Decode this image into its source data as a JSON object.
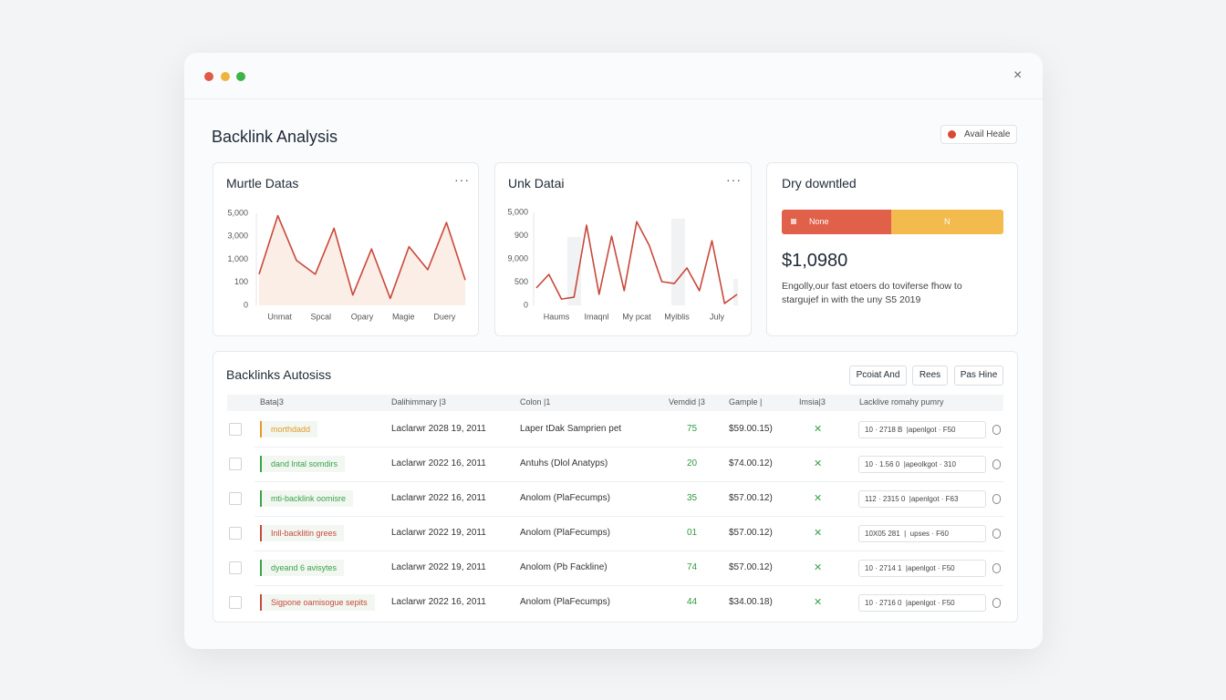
{
  "window": {
    "title": "Backlink Analysis",
    "button": "Avail Heale"
  },
  "charts": [
    {
      "type": "line",
      "title": "Murtle Datas",
      "color": "#c9483b",
      "fill": "#fbeee6",
      "y_labels": [
        "5,000",
        "3,000",
        "1,000",
        "100",
        "0"
      ],
      "ylim": [
        0,
        4
      ],
      "categories": [
        "Unmat",
        "Spcal",
        "Opary",
        "Magie",
        "Duery"
      ],
      "values": [
        1.35,
        3.9,
        1.95,
        1.35,
        3.35,
        0.45,
        2.45,
        0.3,
        2.55,
        1.55,
        3.6,
        1.1
      ]
    },
    {
      "type": "line",
      "title": "Unk Datai",
      "color": "#c9483b",
      "y_labels": [
        "5,000",
        "900",
        "9,000",
        "500",
        "0"
      ],
      "ylim": [
        0,
        4
      ],
      "categories": [
        "Haums",
        "Imaqnl",
        "My pcat",
        "Myiblis",
        "July"
      ],
      "values": [
        0.75,
        1.33,
        0.27,
        0.35,
        3.45,
        0.47,
        2.98,
        0.63,
        3.6,
        2.58,
        1.02,
        0.94,
        1.61,
        0.63,
        2.78,
        0.08,
        0.47
      ]
    }
  ],
  "summary": {
    "title": "Dry downtled",
    "bar_left": "None",
    "bar_right": "N",
    "amount": "$1,0980",
    "text_1": "Engolly,our fast etoers do toviferse fhow to",
    "text_2": "stargujef in with the uny S5 2019"
  },
  "table": {
    "title": "Backlinks Autosiss",
    "buttons": [
      "Pcoiat And",
      "Rees",
      "Pas Hine"
    ],
    "headers": [
      "Bata|3",
      "Dalihimmary |3",
      "Colon |1",
      "Vemdid |3",
      "Gample |",
      "Imsia|3",
      "Lacklive romahy pumry"
    ],
    "rows": [
      {
        "tag": "morthdadd",
        "color": "#e59a2a",
        "date": "Laclarwr 2028 19, 2011",
        "source": "Laper tDak Samprien pet",
        "score": "75",
        "price": "$59.00.15)",
        "pill": "10 · 2718 B  |apenlgot · F50"
      },
      {
        "tag": "dand lntal somdirs",
        "color": "#3aa34a",
        "date": "Laclarwr 2022 16, 2011",
        "source": "Antuhs (Dlol Anatyps)",
        "score": "20",
        "price": "$74.00.12)",
        "pill": "10 · 1.56 0  |apeolkgot · 310"
      },
      {
        "tag": "mti-backlink oomisre",
        "color": "#3aa34a",
        "date": "Laclarwr 2022 16, 2011",
        "source": "Anolom (PlaFecumps)",
        "score": "35",
        "price": "$57.00.12)",
        "pill": "112 · 2315 0  |apenlgot · F63"
      },
      {
        "tag": "Inll-backlitin grees",
        "color": "#c9483b",
        "date": "Laclarwr 2022 19, 2011",
        "source": "Anolom (PlaFecumps)",
        "score": "01",
        "price": "$57.00.12)",
        "pill": "10X05 281  |  upses · F60"
      },
      {
        "tag": "dyeand 6 avisytes",
        "color": "#3aa34a",
        "date": "Laclarwr 2022 19, 2011",
        "source": "Anolom (Pb Fackline)",
        "score": "74",
        "price": "$57.00.12)",
        "pill": "10 · 2714 1  |apenlgot · F50"
      },
      {
        "tag": "Sigpone oamisogue sepits",
        "color": "#c9483b",
        "date": "Laclarwr 2022 16, 2011",
        "source": "Anolom (PlaFecumps)",
        "score": "44",
        "price": "$34.00.18)",
        "pill": "10 · 2716 0  |apenlgot · F50"
      }
    ]
  }
}
